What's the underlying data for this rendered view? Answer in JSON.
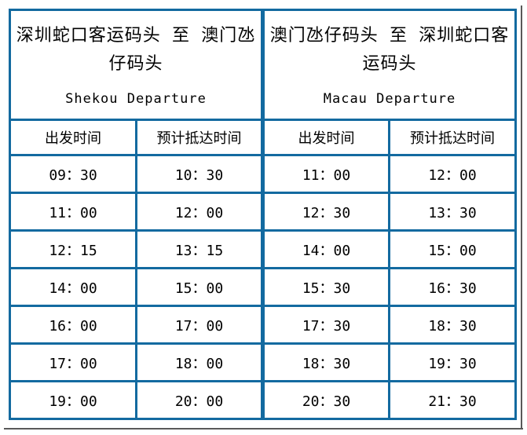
{
  "colors": {
    "header_bg": "#97B3D6",
    "border": "#136AA0",
    "header_text": "#FFFFFF",
    "cell_text": "#000000",
    "shadow": "#595959"
  },
  "left": {
    "title_zh": "深圳蛇口客运码头 至 澳门氹仔码头",
    "title_en": "Shekou Departure",
    "columns": [
      "出发时间",
      "预计抵达时间"
    ],
    "rows": [
      [
        "09：30",
        "10：30"
      ],
      [
        "11：00",
        "12：00"
      ],
      [
        "12：15",
        "13：15"
      ],
      [
        "14：00",
        "15：00"
      ],
      [
        "16：00",
        "17：00"
      ],
      [
        "17：00",
        "18：00"
      ],
      [
        "19：00",
        "20：00"
      ]
    ]
  },
  "right": {
    "title_zh": "澳门氹仔码头 至 深圳蛇口客运码头",
    "title_en": "Macau Departure",
    "columns": [
      "出发时间",
      "预计抵达时间"
    ],
    "rows": [
      [
        "11：00",
        "12：00"
      ],
      [
        "12：30",
        "13：30"
      ],
      [
        "14：00",
        "15：00"
      ],
      [
        "15：30",
        "16：30"
      ],
      [
        "17：30",
        "18：30"
      ],
      [
        "18：30",
        "19：30"
      ],
      [
        "20：30",
        "21：30"
      ]
    ]
  }
}
